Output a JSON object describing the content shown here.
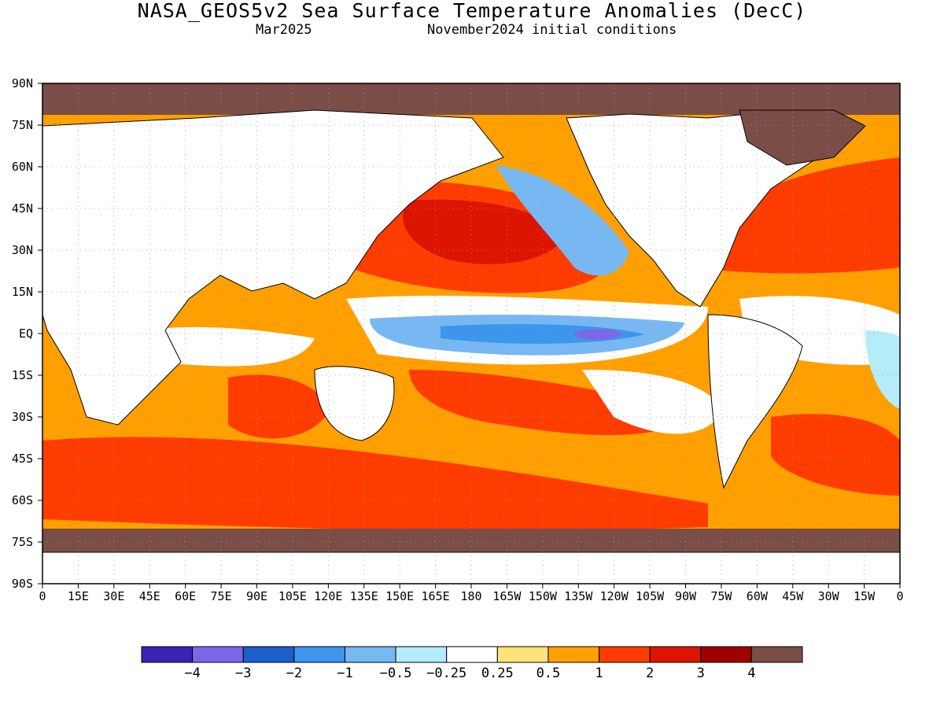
{
  "title": "NASA_GEOS5v2 Sea Surface Temperature Anomalies (DecC)",
  "subtitle_left": "Mar2025",
  "subtitle_right": "November2024 initial conditions",
  "lat_labels": [
    "90N",
    "75N",
    "60N",
    "45N",
    "30N",
    "15N",
    "EQ",
    "15S",
    "30S",
    "45S",
    "60S",
    "75S",
    "90S"
  ],
  "lat_values": [
    90,
    75,
    60,
    45,
    30,
    15,
    0,
    -15,
    -30,
    -45,
    -60,
    -75,
    -90
  ],
  "lon_labels": [
    "0",
    "15E",
    "30E",
    "45E",
    "60E",
    "75E",
    "90E",
    "105E",
    "120E",
    "135E",
    "150E",
    "165E",
    "180",
    "165W",
    "150W",
    "135W",
    "120W",
    "105W",
    "90W",
    "75W",
    "60W",
    "45W",
    "30W",
    "15W",
    "0"
  ],
  "lon_values": [
    0,
    15,
    30,
    45,
    60,
    75,
    90,
    105,
    120,
    135,
    150,
    165,
    180,
    195,
    210,
    225,
    240,
    255,
    270,
    285,
    300,
    315,
    330,
    345,
    360
  ],
  "colorbar": {
    "colors": [
      "#3a22b4",
      "#7b68e8",
      "#1a5fcc",
      "#3c96ee",
      "#78b8f2",
      "#b4ecfa",
      "#ffffff",
      "#ffe27a",
      "#ffa000",
      "#ff3c00",
      "#dc1400",
      "#a00000",
      "#7a4e46"
    ],
    "labels": [
      "−4",
      "−3",
      "−2",
      "−1",
      "−0.5",
      "−0.25",
      "0.25",
      "0.5",
      "1",
      "2",
      "3",
      "4"
    ]
  },
  "land_color": "#ffffff",
  "ice_color": "#7a4e46",
  "map_extent": {
    "lon_range": [
      0,
      360
    ],
    "lat_range": [
      -90,
      90
    ]
  }
}
